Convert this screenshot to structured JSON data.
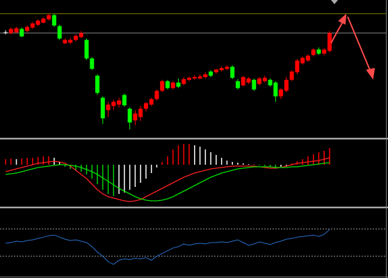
{
  "chart_data": [
    {
      "type": "candlestick",
      "open": [
        153,
        152,
        153,
        158,
        155,
        160,
        164,
        167,
        172,
        178,
        162,
        137,
        138,
        142,
        146,
        142,
        115,
        90,
        58,
        40,
        46,
        48,
        62,
        42,
        25,
        30,
        42,
        48,
        56,
        68,
        82,
        72,
        80,
        78,
        84,
        86,
        86,
        88,
        96,
        95,
        98,
        100,
        103,
        82,
        76,
        80,
        84,
        78,
        82,
        84,
        80,
        60,
        68,
        84,
        95,
        108,
        112,
        120,
        128,
        122,
        126
      ],
      "high": [
        156,
        160,
        161,
        160,
        163,
        168,
        172,
        175,
        180,
        180,
        164,
        144,
        145,
        150,
        155,
        144,
        117,
        92,
        60,
        52,
        55,
        58,
        64,
        44,
        40,
        46,
        52,
        58,
        70,
        84,
        84,
        82,
        86,
        88,
        89,
        91,
        92,
        95,
        98,
        100,
        103,
        105,
        105,
        85,
        90,
        88,
        86,
        88,
        90,
        86,
        82,
        72,
        88,
        98,
        114,
        118,
        121,
        130,
        131,
        130,
        155
      ],
      "low": [
        150,
        150,
        152,
        146,
        153,
        158,
        162,
        166,
        170,
        161,
        142,
        136,
        136,
        140,
        145,
        113,
        98,
        62,
        20,
        30,
        40,
        44,
        45,
        12,
        18,
        24,
        38,
        46,
        54,
        66,
        70,
        70,
        72,
        76,
        82,
        84,
        85,
        86,
        88,
        93,
        96,
        98,
        85,
        70,
        74,
        78,
        68,
        76,
        80,
        74,
        52,
        56,
        66,
        82,
        92,
        106,
        110,
        118,
        120,
        120,
        124
      ],
      "close": [
        153,
        158,
        159,
        147,
        161,
        166,
        170,
        173,
        178,
        163,
        144,
        142,
        142,
        148,
        152,
        115,
        100,
        65,
        28,
        48,
        52,
        54,
        47,
        22,
        35,
        42,
        50,
        56,
        68,
        82,
        72,
        80,
        74,
        85,
        87,
        88,
        89,
        92,
        90,
        99,
        101,
        103,
        87,
        72,
        88,
        86,
        70,
        86,
        87,
        76,
        60,
        70,
        84,
        96,
        112,
        116,
        119,
        128,
        122,
        128,
        152
      ],
      "ylim": [
        0,
        200
      ],
      "up_color": "#ff0000",
      "down_color": "#00ff00",
      "doji_color": "#ffffff",
      "hlines": [
        {
          "value": 180,
          "color": "#808000"
        },
        {
          "value": 152,
          "color": "#808080"
        }
      ]
    },
    {
      "type": "macd",
      "histogram": [
        8,
        9,
        8,
        9,
        10,
        10,
        11,
        12,
        12,
        10,
        4,
        -3,
        -6,
        -8,
        -10,
        -14,
        -20,
        -28,
        -36,
        -42,
        -45,
        -42,
        -40,
        -36,
        -32,
        -26,
        -20,
        -12,
        -4,
        4,
        12,
        22,
        28,
        30,
        30,
        28,
        26,
        22,
        18,
        14,
        10,
        6,
        4,
        3,
        2,
        1,
        1,
        -1,
        -2,
        -3,
        -4,
        -3,
        -2,
        2,
        5,
        8,
        12,
        15,
        18,
        20,
        24
      ],
      "up_color": "#ff0000",
      "down_color": "#00cc00",
      "fade_color": "#ffffff",
      "series": [
        {
          "color": "#ff2020",
          "values": [
            -10,
            -8,
            -6,
            -4,
            -2,
            0,
            2,
            3,
            4,
            5,
            4,
            2,
            -2,
            -8,
            -14,
            -20,
            -28,
            -36,
            -42,
            -46,
            -48,
            -50,
            -52,
            -53,
            -52,
            -50,
            -46,
            -42,
            -38,
            -34,
            -30,
            -26,
            -22,
            -18,
            -15,
            -12,
            -10,
            -8,
            -6,
            -5,
            -4,
            -3,
            -2,
            -2,
            -2,
            -2,
            -2,
            -3,
            -4,
            -5,
            -5,
            -4,
            -2,
            0,
            2,
            3,
            4,
            5,
            6,
            8,
            10
          ]
        },
        {
          "color": "#00e000",
          "values": [
            -14,
            -13,
            -12,
            -10,
            -8,
            -6,
            -4,
            -3,
            -2,
            -1,
            0,
            0,
            -1,
            -2,
            -4,
            -7,
            -10,
            -14,
            -19,
            -24,
            -29,
            -34,
            -38,
            -42,
            -46,
            -49,
            -51,
            -52,
            -52,
            -51,
            -49,
            -46,
            -42,
            -38,
            -34,
            -30,
            -26,
            -22,
            -18,
            -15,
            -12,
            -10,
            -8,
            -6,
            -5,
            -4,
            -3,
            -3,
            -3,
            -3,
            -4,
            -4,
            -4,
            -3,
            -3,
            -2,
            -1,
            0,
            1,
            2,
            3
          ]
        }
      ],
      "ylim": [
        -60,
        35
      ]
    },
    {
      "type": "line",
      "values": [
        49,
        50,
        52,
        51,
        53,
        54,
        56,
        58,
        60,
        61,
        58,
        55,
        53,
        54,
        52,
        50,
        44,
        36,
        30,
        22,
        18,
        24,
        26,
        25,
        27,
        26,
        28,
        24,
        30,
        34,
        38,
        42,
        44,
        48,
        46,
        48,
        49,
        48,
        50,
        50,
        51,
        50,
        52,
        54,
        50,
        46,
        48,
        51,
        49,
        47,
        50,
        52,
        55,
        56,
        58,
        59,
        60,
        61,
        59,
        62,
        69
      ],
      "color": "#2a6fc9",
      "ylim": [
        0,
        100
      ],
      "hlines": [
        {
          "value": 70,
          "color": "#9a9a9a"
        },
        {
          "value": 30,
          "color": "#9a9a9a"
        }
      ],
      "hline_style": "dotted"
    }
  ]
}
